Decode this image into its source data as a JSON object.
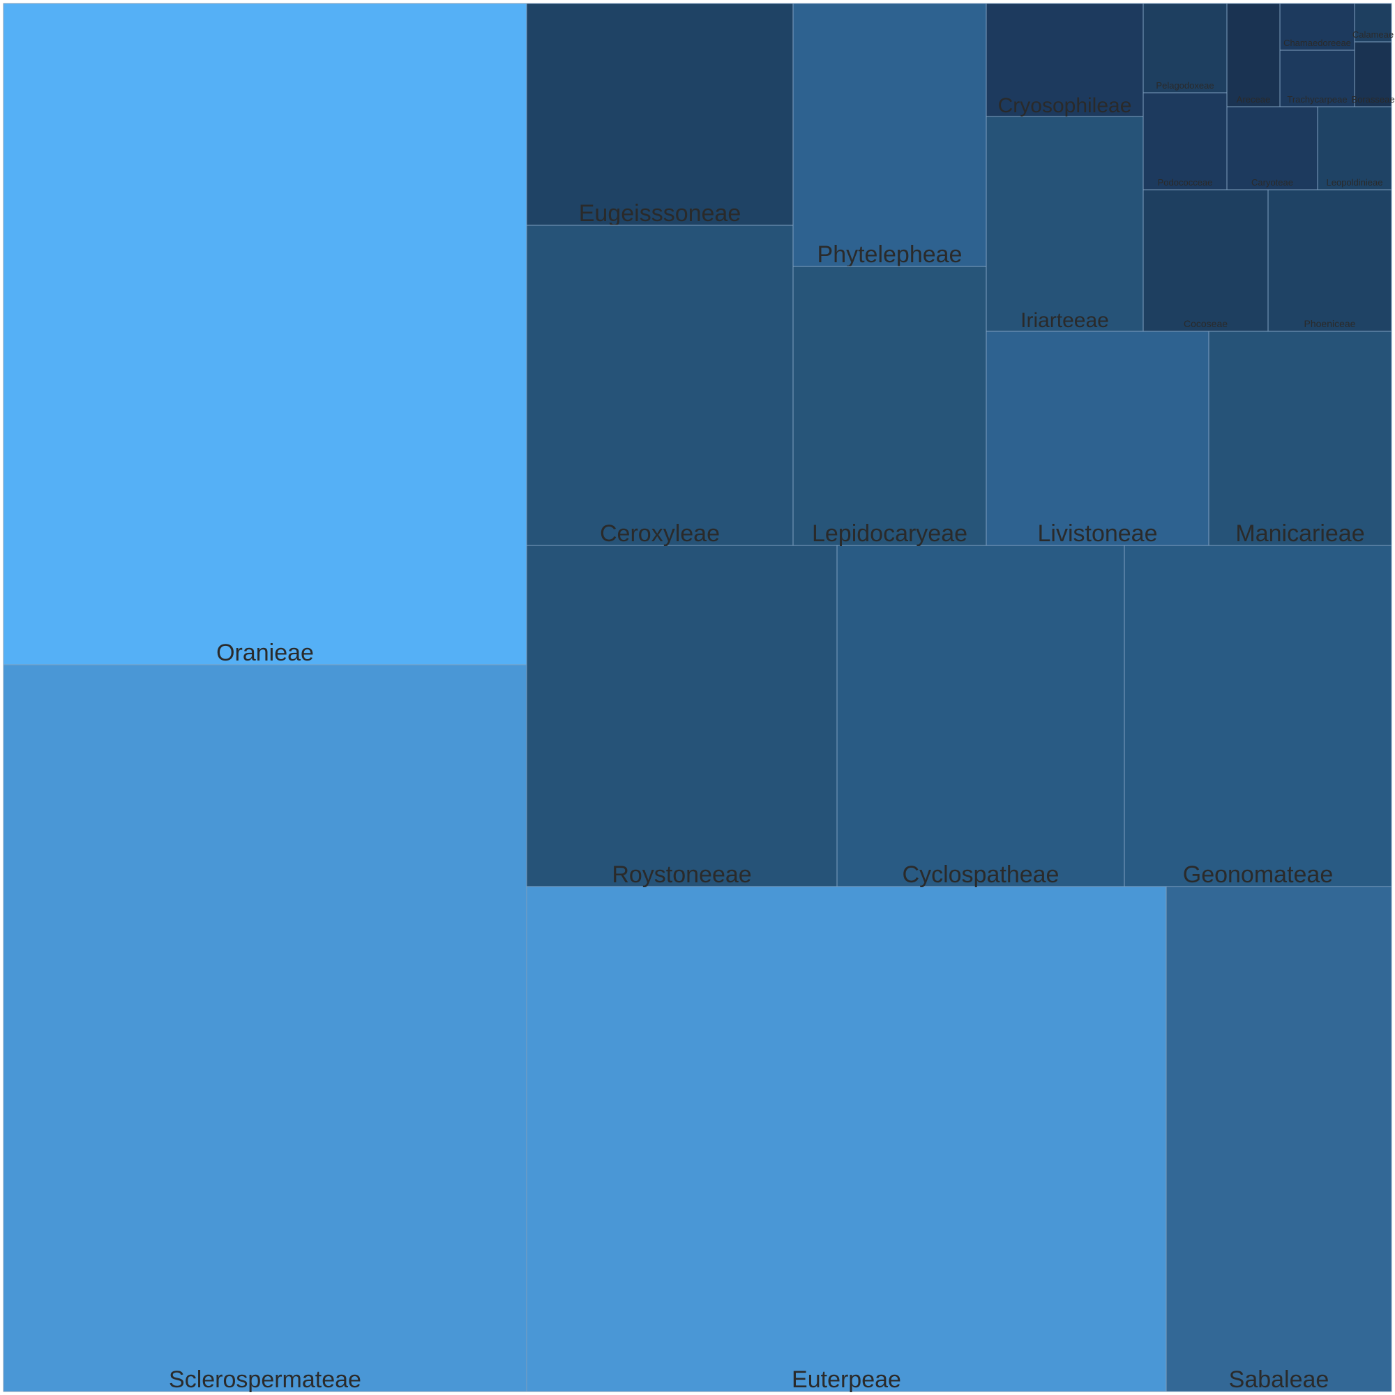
{
  "chart_data": {
    "type": "treemap",
    "title": "",
    "items": [
      {
        "name": "Oranieae",
        "value": 562,
        "color": "#55b0f6"
      },
      {
        "name": "Sclerospermateae",
        "value": 707,
        "color": "#4a97d6"
      },
      {
        "name": "Euterpeae",
        "value": 626,
        "color": "#4a97d6"
      },
      {
        "name": "Sabaleae",
        "value": 177,
        "color": "#336896"
      },
      {
        "name": "Roystoneeae",
        "value": 171,
        "color": "#265378"
      },
      {
        "name": "Cyclospatheae",
        "value": 158,
        "color": "#295b84"
      },
      {
        "name": "Geonomateae",
        "value": 147,
        "color": "#295b84"
      },
      {
        "name": "Eugeisssoneae",
        "value": 95,
        "color": "#1f4365"
      },
      {
        "name": "Ceroxyleae",
        "value": 119,
        "color": "#265378"
      },
      {
        "name": "Phytelepheae",
        "value": 82,
        "color": "#2e6290"
      },
      {
        "name": "Lepidocaryeae",
        "value": 87,
        "color": "#275579"
      },
      {
        "name": "Livistoneae",
        "value": 77,
        "color": "#2e6290"
      },
      {
        "name": "Manicarieae",
        "value": 66,
        "color": "#265378"
      },
      {
        "name": "Iriarteeae",
        "value": 55,
        "color": "#265378"
      },
      {
        "name": "Cryosophileae",
        "value": 28,
        "color": "#1d3a5e"
      },
      {
        "name": "Cocoseae",
        "value": 29,
        "color": "#1e3f60"
      },
      {
        "name": "Phoeniceae",
        "value": 28,
        "color": "#1f4365"
      },
      {
        "name": "Pelagodoxeae",
        "value": 16,
        "color": "#1e3f60"
      },
      {
        "name": "Podococceae",
        "value": 18,
        "color": "#1d3a5e"
      },
      {
        "name": "Caryoteae",
        "value": 12,
        "color": "#1d3a5e"
      },
      {
        "name": "Leopoldinieae",
        "value": 11,
        "color": "#1f4365"
      },
      {
        "name": "Chamaedoreeae",
        "value": 7,
        "color": "#1d3a5e"
      },
      {
        "name": "Trachycarpeae",
        "value": 7,
        "color": "#1d3a5e"
      },
      {
        "name": "Areceae",
        "value": 2,
        "color": "#1a3352"
      },
      {
        "name": "Calameae",
        "value": 3,
        "color": "#1e3f60"
      },
      {
        "name": "Borasseae",
        "value": 9,
        "color": "#1a3352"
      }
    ]
  }
}
